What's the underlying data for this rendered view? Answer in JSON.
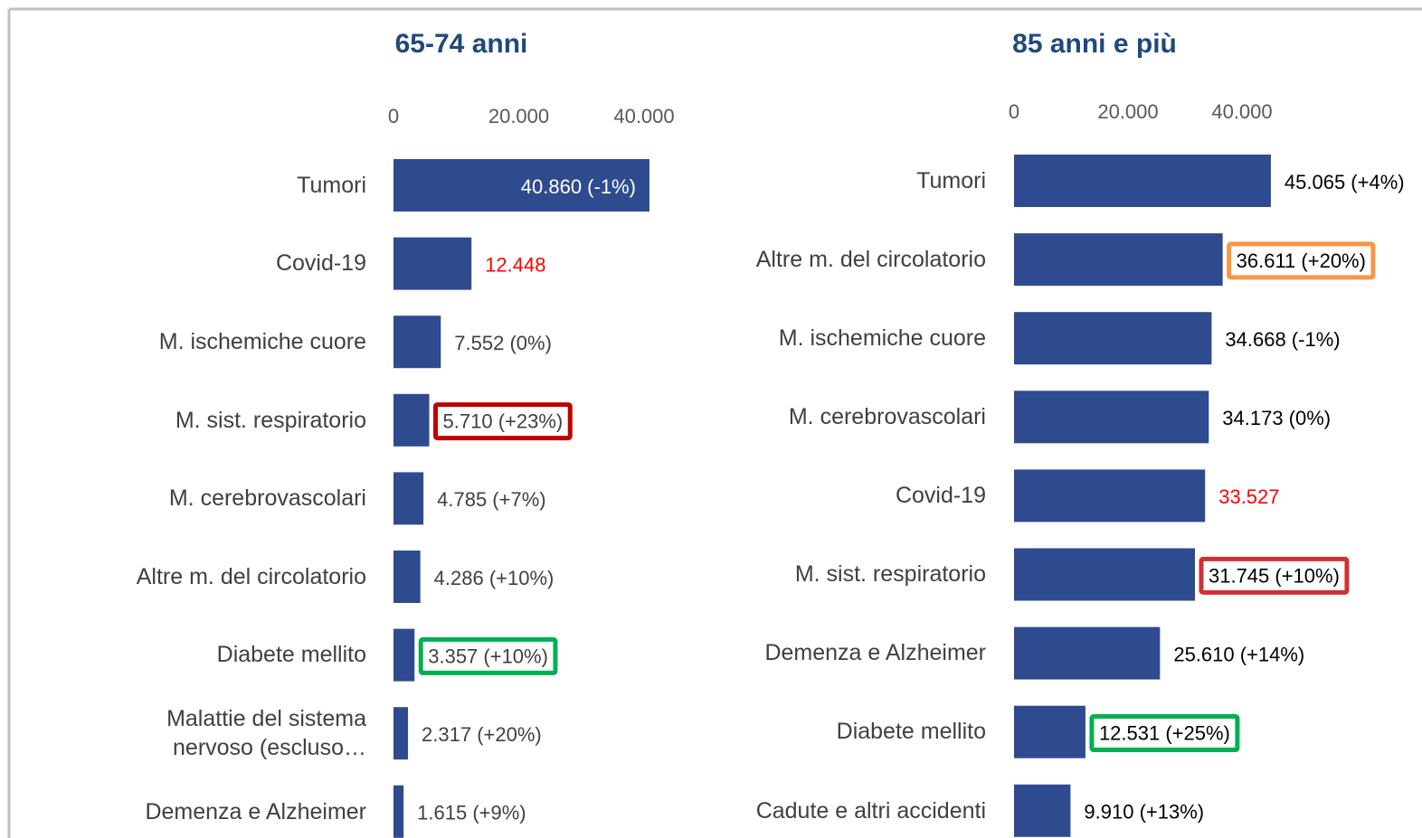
{
  "chart_data": [
    {
      "type": "bar",
      "title": "65-74 anni",
      "categories": [
        "Tumori",
        "Covid-19",
        "M. ischemiche cuore",
        "M. sist. respiratorio",
        "M. cerebrovascolari",
        "Altre m. del circolatorio",
        "Diabete mellito",
        "Malattie del sistema nervoso (escluso…",
        "Demenza e Alzheimer"
      ],
      "values": [
        40860,
        12448,
        7552,
        5710,
        4785,
        4286,
        3357,
        2317,
        1615
      ],
      "value_labels": [
        "40.860 (-1%)",
        "12.448",
        "7.552 (0%)",
        "5.710 (+23%)",
        "4.785 (+7%)",
        "4.286 (+10%)",
        "3.357 (+10%)",
        "2.317 (+20%)",
        "1.615 (+9%)"
      ],
      "value_label_colors": [
        "#ffffff",
        "#ff0000",
        "#404040",
        "#404040",
        "#404040",
        "#404040",
        "#404040",
        "#404040",
        "#404040"
      ],
      "value_label_box_colors": [
        null,
        null,
        null,
        "#c00000",
        null,
        null,
        "#00b050",
        null,
        null
      ],
      "color": "#2f4b8f",
      "xlim": [
        0,
        45000
      ],
      "xticks": [
        0,
        {
          "value": 20000,
          "label": "20.000"
        },
        {
          "value": 40000,
          "label": "40.000"
        }
      ]
    },
    {
      "type": "bar",
      "title": "85 anni e più",
      "categories": [
        "Tumori",
        "Altre m. del circolatorio",
        "M. ischemiche cuore",
        "M. cerebrovascolari",
        "Covid-19",
        "M. sist. respiratorio",
        "Demenza e Alzheimer",
        "Diabete mellito",
        "Cadute e altri accidenti"
      ],
      "values": [
        45065,
        36611,
        34668,
        34173,
        33527,
        31745,
        25610,
        12531,
        9910
      ],
      "value_labels": [
        "45.065 (+4%)",
        "36.611 (+20%)",
        "34.668 (-1%)",
        "34.173 (0%)",
        "33.527",
        "31.745 (+10%)",
        "25.610 (+14%)",
        "12.531 (+25%)",
        "9.910 (+13%)"
      ],
      "value_label_colors": [
        "#000000",
        "#000000",
        "#000000",
        "#000000",
        "#ff0000",
        "#000000",
        "#000000",
        "#000000",
        "#000000"
      ],
      "value_label_box_colors": [
        null,
        "#f79646",
        null,
        null,
        null,
        "#d03030",
        null,
        "#00b050",
        null
      ],
      "color": "#2f4b8f",
      "xlim": [
        0,
        45000
      ],
      "xticks": [
        0,
        {
          "value": 20000,
          "label": "20.000"
        },
        {
          "value": 40000,
          "label": "40.000"
        }
      ]
    }
  ]
}
